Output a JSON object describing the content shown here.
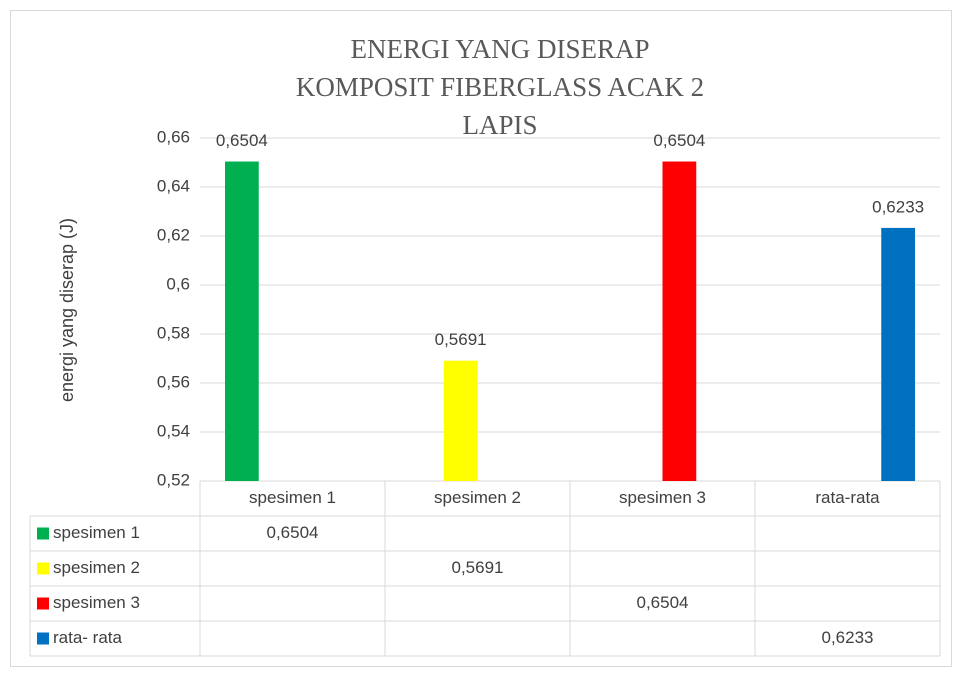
{
  "chart_data": {
    "type": "bar",
    "title": "ENERGI YANG DISERAP KOMPOSIT FIBERGLASS ACAK 2 LAPIS",
    "y_label": "energi yang diserap (J)",
    "categories": [
      "spesimen 1",
      "spesimen 2",
      "spesimen 3",
      "rata-rata"
    ],
    "series": [
      {
        "name": "spesimen 1",
        "color": "#00b050",
        "values": [
          0.6504,
          null,
          null,
          null
        ],
        "value_labels": [
          "0,6504",
          null,
          null,
          null
        ]
      },
      {
        "name": "spesimen 2",
        "color": "#ffff00",
        "values": [
          null,
          0.5691,
          null,
          null
        ],
        "value_labels": [
          null,
          "0,5691",
          null,
          null
        ]
      },
      {
        "name": "spesimen 3",
        "color": "#ff0000",
        "values": [
          null,
          null,
          0.6504,
          null
        ],
        "value_labels": [
          null,
          null,
          "0,6504",
          null
        ]
      },
      {
        "name": "rata- rata",
        "color": "#0070c0",
        "values": [
          null,
          null,
          null,
          0.6233
        ],
        "value_labels": [
          null,
          null,
          null,
          "0,6233"
        ]
      }
    ],
    "ylim": [
      0.52,
      0.66
    ],
    "yticks": [
      {
        "value": 0.52,
        "label": "0,52"
      },
      {
        "value": 0.54,
        "label": "0,54"
      },
      {
        "value": 0.56,
        "label": "0,56"
      },
      {
        "value": 0.58,
        "label": "0,58"
      },
      {
        "value": 0.6,
        "label": "0,6"
      },
      {
        "value": 0.62,
        "label": "0,62"
      },
      {
        "value": 0.64,
        "label": "0,64"
      },
      {
        "value": 0.66,
        "label": "0,66"
      }
    ],
    "grid": true
  }
}
